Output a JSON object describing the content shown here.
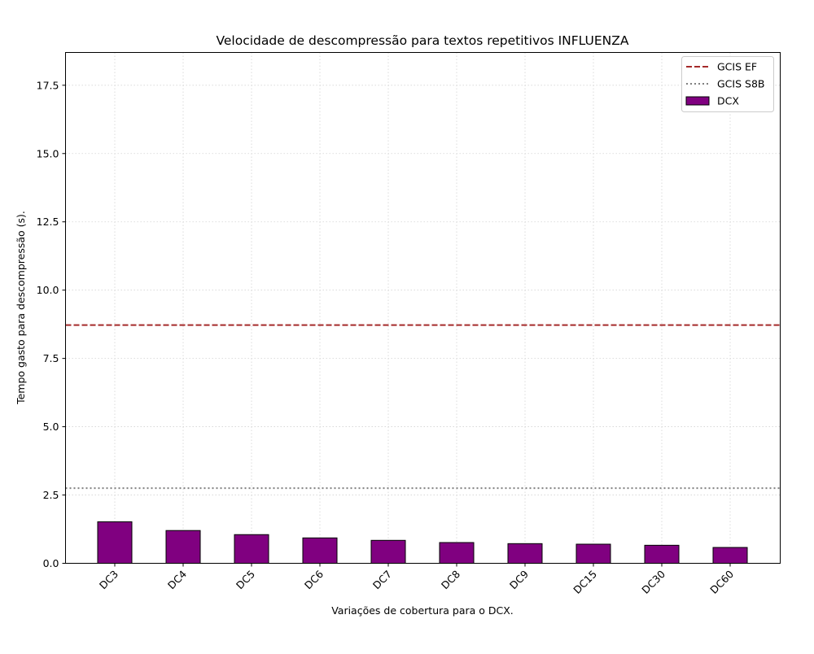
{
  "chart_data": {
    "type": "bar",
    "title": "Velocidade de descompressão para textos repetitivos INFLUENZA",
    "xlabel": "Variações de cobertura para o DCX.",
    "ylabel": "Tempo gasto para descompressão (s).",
    "ylim": [
      0,
      18.7
    ],
    "yticks": [
      0.0,
      2.5,
      5.0,
      7.5,
      10.0,
      12.5,
      15.0,
      17.5
    ],
    "ytick_labels": [
      "0.0",
      "2.5",
      "5.0",
      "7.5",
      "10.0",
      "12.5",
      "15.0",
      "17.5"
    ],
    "grid": true,
    "legend_position": "top-right",
    "categories": [
      "DC3",
      "DC4",
      "DC5",
      "DC6",
      "DC7",
      "DC8",
      "DC9",
      "DC15",
      "DC30",
      "DC60"
    ],
    "series": [
      {
        "name": "DCX",
        "type": "bar",
        "color": "#800080",
        "edgecolor": "#000000",
        "values": [
          1.52,
          1.2,
          1.05,
          0.93,
          0.84,
          0.76,
          0.72,
          0.7,
          0.66,
          0.58
        ]
      }
    ],
    "reference_lines": [
      {
        "name": "GCIS EF",
        "value": 8.72,
        "style": "dashed",
        "color": "#a52a2a"
      },
      {
        "name": "GCIS S8B",
        "value": 2.75,
        "style": "dotted",
        "color": "#808080"
      }
    ]
  }
}
